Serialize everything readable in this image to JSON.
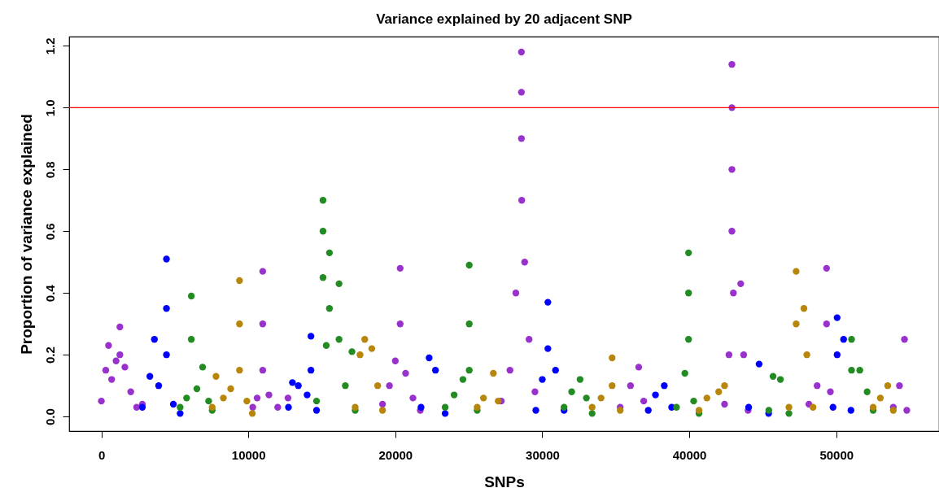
{
  "chart_data": {
    "type": "scatter",
    "title": "Variance explained by 20 adjacent SNP",
    "xlabel": "SNPs",
    "ylabel": "Proportion of variance explained",
    "xlim": [
      -2190,
      56990
    ],
    "xticks": [
      0,
      10000,
      20000,
      30000,
      40000,
      50000
    ],
    "ylim": [
      -0.047,
      1.23
    ],
    "yticks": [
      {
        "value": 0,
        "label": "0.0"
      },
      {
        "value": 0.2,
        "label": "0.2"
      },
      {
        "value": 0.4,
        "label": "0.4"
      },
      {
        "value": 0.6,
        "label": "0.6"
      },
      {
        "value": 0.8,
        "label": "0.8"
      },
      {
        "value": 1,
        "label": "1.0"
      },
      {
        "value": 1.2,
        "label": "1.2"
      }
    ],
    "marker": "circle",
    "ref_lines": [
      {
        "axis": "y",
        "value": 1,
        "color": "#ff0000"
      }
    ],
    "series": [
      {
        "color": "#9932cc",
        "x": [
          0,
          300,
          490,
          700,
          1000,
          1260,
          1260,
          1600,
          2000,
          2400,
          2790,
          10300,
          10600,
          10980,
          10980,
          10980,
          11400,
          12000,
          12700,
          19130,
          19600,
          20000,
          20330,
          20330,
          20700,
          21200,
          21700,
          27210,
          27800,
          28200,
          28580,
          28580,
          28580,
          28600,
          28800,
          29100,
          29500,
          35300,
          36000,
          36560,
          36900,
          42400,
          42700,
          42900,
          42900,
          42900,
          42900,
          43000,
          43500,
          43700,
          44000,
          48140,
          48700,
          49340,
          49340,
          49600,
          53880,
          54300,
          54640,
          54800
        ],
        "values": [
          0.05,
          0.15,
          0.23,
          0.12,
          0.18,
          0.29,
          0.2,
          0.16,
          0.08,
          0.03,
          0.04,
          0.03,
          0.06,
          0.47,
          0.3,
          0.15,
          0.07,
          0.03,
          0.06,
          0.04,
          0.1,
          0.18,
          0.48,
          0.3,
          0.14,
          0.06,
          0.02,
          0.05,
          0.15,
          0.4,
          1.18,
          1.05,
          0.9,
          0.7,
          0.5,
          0.25,
          0.08,
          0.03,
          0.1,
          0.16,
          0.05,
          0.04,
          0.2,
          1.14,
          1.0,
          0.8,
          0.6,
          0.4,
          0.43,
          0.2,
          0.02,
          0.04,
          0.1,
          0.48,
          0.3,
          0.08,
          0.03,
          0.1,
          0.25,
          0.02
        ]
      },
      {
        "color": "#0000ff",
        "x": [
          2790,
          3300,
          3610,
          3900,
          4430,
          4430,
          4430,
          4900,
          5360,
          12730,
          13000,
          13400,
          14000,
          14260,
          14260,
          14640,
          21750,
          22300,
          22730,
          23390,
          29560,
          30000,
          30380,
          30380,
          30900,
          31480,
          37210,
          37700,
          38300,
          38800,
          44040,
          44750,
          45400,
          49780,
          50060,
          50060,
          50500,
          51000
        ],
        "values": [
          0.03,
          0.13,
          0.25,
          0.1,
          0.51,
          0.35,
          0.2,
          0.04,
          0.01,
          0.03,
          0.11,
          0.1,
          0.07,
          0.26,
          0.15,
          0.02,
          0.03,
          0.19,
          0.15,
          0.01,
          0.02,
          0.12,
          0.37,
          0.22,
          0.15,
          0.02,
          0.02,
          0.07,
          0.1,
          0.03,
          0.03,
          0.17,
          0.01,
          0.03,
          0.32,
          0.2,
          0.25,
          0.02
        ]
      },
      {
        "color": "#228b22",
        "x": [
          5360,
          5800,
          6120,
          6120,
          6500,
          6890,
          7300,
          7540,
          14640,
          15080,
          15080,
          15080,
          15300,
          15520,
          15520,
          16170,
          16170,
          16600,
          17050,
          17270,
          23390,
          24000,
          24600,
          25030,
          25030,
          25030,
          25570,
          31480,
          32000,
          32570,
          33000,
          33390,
          39130,
          39700,
          39950,
          39950,
          39950,
          40300,
          40660,
          45410,
          45700,
          46200,
          46780,
          51040,
          51040,
          51600,
          52100,
          52510
        ],
        "values": [
          0.03,
          0.06,
          0.39,
          0.25,
          0.09,
          0.16,
          0.05,
          0.02,
          0.05,
          0.7,
          0.6,
          0.45,
          0.23,
          0.53,
          0.35,
          0.43,
          0.25,
          0.1,
          0.21,
          0.02,
          0.03,
          0.07,
          0.12,
          0.49,
          0.3,
          0.15,
          0.02,
          0.03,
          0.08,
          0.12,
          0.06,
          0.01,
          0.03,
          0.14,
          0.53,
          0.4,
          0.25,
          0.05,
          0.01,
          0.02,
          0.13,
          0.12,
          0.01,
          0.25,
          0.15,
          0.15,
          0.08,
          0.02
        ]
      },
      {
        "color": "#b8860b",
        "x": [
          7540,
          7800,
          8300,
          8800,
          9400,
          9400,
          9400,
          9900,
          10270,
          17270,
          17600,
          17920,
          18400,
          18800,
          19130,
          25570,
          26000,
          26670,
          27000,
          33390,
          34000,
          34750,
          34750,
          35300,
          40660,
          41200,
          42000,
          42400,
          46780,
          47270,
          47270,
          47800,
          48000,
          48420,
          52510,
          53000,
          53500,
          53880
        ],
        "values": [
          0.03,
          0.13,
          0.06,
          0.09,
          0.44,
          0.3,
          0.15,
          0.05,
          0.01,
          0.03,
          0.2,
          0.25,
          0.22,
          0.1,
          0.02,
          0.03,
          0.06,
          0.14,
          0.05,
          0.03,
          0.06,
          0.19,
          0.1,
          0.02,
          0.02,
          0.06,
          0.08,
          0.1,
          0.03,
          0.47,
          0.3,
          0.35,
          0.2,
          0.03,
          0.03,
          0.06,
          0.1,
          0.02
        ]
      }
    ]
  }
}
